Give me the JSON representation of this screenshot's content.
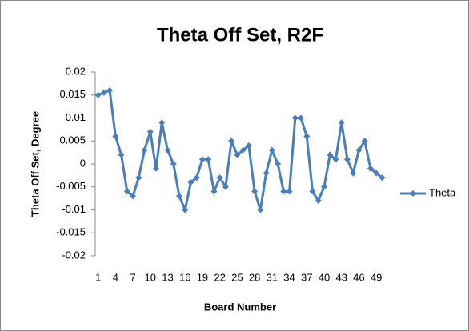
{
  "chart_data": {
    "type": "line",
    "title": "Theta Off Set, R2F",
    "x_label": "Board Number",
    "y_label": "Theta Off Set, Degree",
    "categories": [
      1,
      null,
      null,
      4,
      null,
      null,
      7,
      null,
      null,
      10,
      null,
      null,
      13,
      null,
      null,
      16,
      null,
      null,
      19,
      null,
      null,
      22,
      null,
      null,
      25,
      null,
      null,
      28,
      null,
      null,
      31,
      null,
      null,
      34,
      null,
      null,
      37,
      null,
      null,
      40,
      null,
      null,
      43,
      null,
      null,
      46,
      null,
      null,
      49,
      null
    ],
    "series": [
      {
        "name": "Theta",
        "color": "#4a7ebb",
        "values": [
          0.015,
          0.0155,
          0.016,
          0.006,
          0.002,
          -0.006,
          -0.007,
          -0.003,
          0.003,
          0.007,
          -0.001,
          0.009,
          0.003,
          0,
          -0.007,
          -0.01,
          -0.004,
          -0.003,
          0.001,
          0.001,
          -0.006,
          -0.003,
          -0.005,
          0.005,
          0.002,
          0.003,
          0.004,
          -0.006,
          -0.01,
          -0.002,
          0.003,
          0,
          -0.006,
          -0.006,
          0.01,
          0.01,
          0.006,
          -0.006,
          -0.008,
          -0.005,
          0.002,
          0.001,
          0.009,
          0.001,
          -0.002,
          0.003,
          0.005,
          -0.001,
          -0.002,
          -0.003
        ]
      }
    ],
    "ylim": [
      -0.02,
      0.02
    ],
    "yticks": [
      0.02,
      0.015,
      0.01,
      0.005,
      0,
      -0.005,
      -0.01,
      -0.015,
      -0.02
    ],
    "grid": false,
    "legend": "right"
  }
}
